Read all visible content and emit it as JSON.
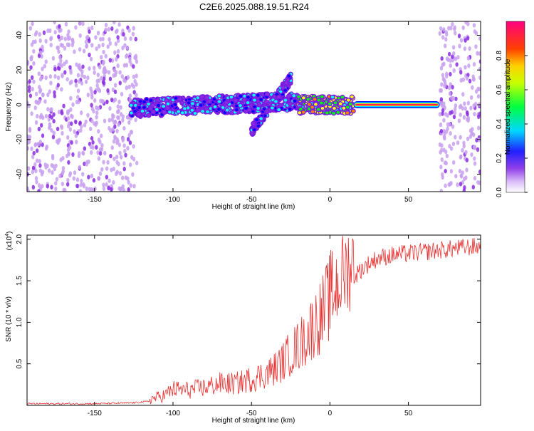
{
  "title": "C2E6.2025.088.19.51.R24",
  "chart_data": [
    {
      "type": "heatmap",
      "xlabel": "Height of straight line (km)",
      "ylabel": "Frequency (Hz)",
      "xlim": [
        -193,
        96
      ],
      "ylim": [
        -50,
        48
      ],
      "xticks": [
        -150,
        -100,
        -50,
        0,
        50
      ],
      "yticks": [
        -40,
        -20,
        0,
        20,
        40
      ],
      "colorbar": {
        "label": "Normalized spectral amplitude",
        "range": [
          0,
          1
        ],
        "ticks": [
          0.0,
          0.2,
          0.4,
          0.6,
          0.8
        ],
        "colormap": [
          "#ffffff",
          "#c8a0f0",
          "#8a2be2",
          "#0000ff",
          "#00ffff",
          "#00ff00",
          "#ffff00",
          "#ff8000",
          "#ff0000",
          "#ff00a0"
        ]
      },
      "features": [
        {
          "kind": "scattered-noise",
          "x_range": [
            -193,
            -123
          ],
          "y_range": [
            -50,
            48
          ],
          "level": 0.15
        },
        {
          "kind": "band",
          "x_range": [
            -127,
            -20
          ],
          "center": [
            -2,
            2
          ],
          "level": 0.35
        },
        {
          "kind": "band-rising",
          "x_range": [
            -50,
            -25
          ],
          "y_range": [
            -15,
            15
          ],
          "level": 0.35
        },
        {
          "kind": "band",
          "x_range": [
            -20,
            15
          ],
          "center": [
            0,
            0
          ],
          "level": 0.6
        },
        {
          "kind": "constant-line",
          "x_range": [
            15,
            70
          ],
          "frequency": 0,
          "level": 0.9
        },
        {
          "kind": "scattered-noise",
          "x_range": [
            70,
            96
          ],
          "y_range": [
            -50,
            48
          ],
          "level": 0.2
        }
      ]
    },
    {
      "type": "line",
      "xlabel": "Height of straight line (km)",
      "ylabel": "SNR (10 * v/v)",
      "scale_label": "(x10",
      "scale_exp": "4",
      "xlim": [
        -193,
        96
      ],
      "ylim": [
        0,
        2.05
      ],
      "xticks": [
        -150,
        -100,
        -50,
        0,
        50
      ],
      "yticks": [
        0.5,
        1.0,
        1.5,
        2.0
      ],
      "color": "#e83030",
      "series": [
        {
          "x": [
            -193,
            -150,
            -125,
            -115,
            -105,
            -100,
            -90,
            -80,
            -70,
            -60,
            -50,
            -40,
            -35,
            -30,
            -25,
            -20,
            -15,
            -10,
            -5,
            0,
            5,
            10,
            15,
            20,
            25,
            30,
            40,
            50,
            60,
            70,
            80,
            90,
            96
          ],
          "y": [
            0.02,
            0.02,
            0.03,
            0.05,
            0.1,
            0.16,
            0.15,
            0.18,
            0.22,
            0.22,
            0.27,
            0.33,
            0.38,
            0.45,
            0.55,
            0.62,
            0.72,
            0.85,
            0.95,
            1.15,
            1.3,
            1.45,
            1.55,
            1.65,
            1.72,
            1.78,
            1.82,
            1.84,
            1.86,
            1.88,
            1.9,
            1.92,
            1.92
          ]
        }
      ]
    }
  ]
}
